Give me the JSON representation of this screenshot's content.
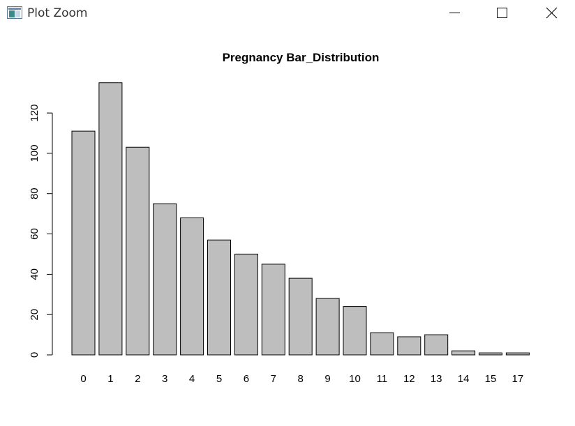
{
  "window": {
    "title": "Plot Zoom"
  },
  "colors": {
    "bar_fill": "#bebebe",
    "bar_stroke": "#000000",
    "axis": "#000000",
    "text": "#000000"
  },
  "icons": {
    "app": "plot-window-icon",
    "minimize": "minimize-icon",
    "maximize": "maximize-icon",
    "close": "close-icon"
  },
  "chart_data": {
    "type": "bar",
    "title": "Pregnancy Bar_Distribution",
    "xlabel": "",
    "ylabel": "",
    "categories": [
      "0",
      "1",
      "2",
      "3",
      "4",
      "5",
      "6",
      "7",
      "8",
      "9",
      "10",
      "11",
      "12",
      "13",
      "14",
      "15",
      "17"
    ],
    "values": [
      111,
      135,
      103,
      75,
      68,
      57,
      50,
      45,
      38,
      28,
      24,
      11,
      9,
      10,
      2,
      1,
      1
    ],
    "yticks": [
      0,
      20,
      40,
      60,
      80,
      100,
      120
    ],
    "ylim": [
      0,
      135
    ],
    "grid": false,
    "legend": "none"
  }
}
